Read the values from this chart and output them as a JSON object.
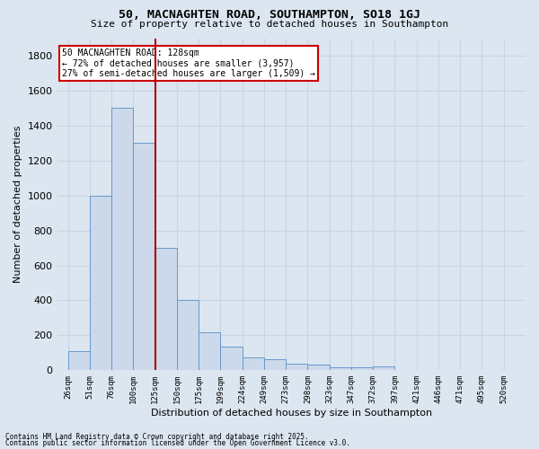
{
  "title1": "50, MACNAGHTEN ROAD, SOUTHAMPTON, SO18 1GJ",
  "title2": "Size of property relative to detached houses in Southampton",
  "xlabel": "Distribution of detached houses by size in Southampton",
  "ylabel": "Number of detached properties",
  "categories": [
    "26sqm",
    "51sqm",
    "76sqm",
    "100sqm",
    "125sqm",
    "150sqm",
    "175sqm",
    "199sqm",
    "224sqm",
    "249sqm",
    "273sqm",
    "298sqm",
    "323sqm",
    "347sqm",
    "372sqm",
    "397sqm",
    "421sqm",
    "446sqm",
    "471sqm",
    "495sqm",
    "520sqm"
  ],
  "bar_heights": [
    110,
    1000,
    1500,
    1300,
    700,
    400,
    215,
    135,
    75,
    65,
    40,
    35,
    15,
    15,
    20,
    0,
    0,
    0,
    0,
    0,
    0
  ],
  "bar_color": "#ccd9ea",
  "bar_edge_color": "#6699cc",
  "vline_color": "#aa0000",
  "vline_x_idx": 4,
  "annotation_line1": "50 MACNAGHTEN ROAD: 128sqm",
  "annotation_line2": "← 72% of detached houses are smaller (3,957)",
  "annotation_line3": "27% of semi-detached houses are larger (1,509) →",
  "annotation_box_color": "#ffffff",
  "annotation_box_edge": "#cc0000",
  "ylim": [
    0,
    1900
  ],
  "yticks": [
    0,
    200,
    400,
    600,
    800,
    1000,
    1200,
    1400,
    1600,
    1800
  ],
  "grid_color": "#c8d4e4",
  "bg_color": "#dce6f0",
  "footnote1": "Contains HM Land Registry data © Crown copyright and database right 2025.",
  "footnote2": "Contains public sector information licensed under the Open Government Licence v3.0."
}
